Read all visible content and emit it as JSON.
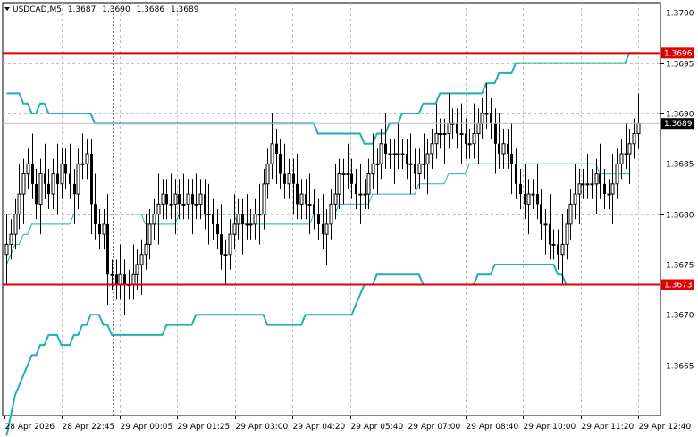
{
  "header": {
    "symbol": "USDCAD,M5",
    "open": "1.3687",
    "high": "1.3690",
    "low": "1.3686",
    "close": "1.3689"
  },
  "colors": {
    "candle": "#000000",
    "bands": "#20b2aa",
    "middle_band": "#20b2aa",
    "grid": "#c0c0c0",
    "level_line": "#e00000",
    "price_tag_bg": "#000000",
    "price_tag_text": "#ffffff"
  },
  "icons": {
    "menu": "triangle-down-icon"
  },
  "chart_data": {
    "type": "candlestick",
    "ylim": [
      1.366,
      1.3701
    ],
    "y_ticks": [
      "1.3700",
      "1.3695",
      "1.3690",
      "1.3685",
      "1.3680",
      "1.3675",
      "1.3670",
      "1.3665"
    ],
    "x_ticks": [
      "28 Apr 2026",
      "28 Apr 22:45",
      "29 Apr 00:05",
      "29 Apr 01:25",
      "29 Apr 03:00",
      "29 Apr 04:20",
      "29 Apr 05:40",
      "29 Apr 07:00",
      "29 Apr 08:40",
      "29 Apr 10:00",
      "29 Apr 11:20",
      "29 Apr 12:40"
    ],
    "grid": true,
    "levels": [
      {
        "value": 1.3696,
        "label": "1.3696"
      },
      {
        "value": 1.3673,
        "label": "1.3673"
      }
    ],
    "current_price": {
      "value": 1.3689,
      "label": "1.3689"
    },
    "candle_closes": [
      1.3677,
      1.3678,
      1.368,
      1.3682,
      1.3684,
      1.3685,
      1.3683,
      1.3681,
      1.3684,
      1.3683,
      1.3682,
      1.3684,
      1.3683,
      1.3685,
      1.3684,
      1.3683,
      1.3682,
      1.3685,
      1.3685,
      1.3686,
      1.3681,
      1.3679,
      1.3678,
      1.3679,
      1.3674,
      1.3674,
      1.3673,
      1.3674,
      1.3673,
      1.3673,
      1.3674,
      1.3675,
      1.3676,
      1.3677,
      1.3679,
      1.368,
      1.3681,
      1.3682,
      1.3681,
      1.3681,
      1.3682,
      1.3681,
      1.3681,
      1.3682,
      1.3681,
      1.3681,
      1.3682,
      1.368,
      1.368,
      1.3679,
      1.3678,
      1.3676,
      1.3676,
      1.3678,
      1.3679,
      1.368,
      1.3679,
      1.3679,
      1.3679,
      1.368,
      1.368,
      1.3683,
      1.3685,
      1.3687,
      1.3686,
      1.3684,
      1.3683,
      1.3684,
      1.3683,
      1.3681,
      1.3682,
      1.3681,
      1.3681,
      1.368,
      1.3679,
      1.3678,
      1.3679,
      1.3681,
      1.3682,
      1.3684,
      1.3684,
      1.3684,
      1.3683,
      1.3682,
      1.3682,
      1.3682,
      1.3684,
      1.3685,
      1.3685,
      1.3687,
      1.3686,
      1.3686,
      1.3686,
      1.3686,
      1.3686,
      1.3685,
      1.3685,
      1.3684,
      1.3685,
      1.3685,
      1.3686,
      1.3687,
      1.3688,
      1.3688,
      1.3688,
      1.3689,
      1.3689,
      1.3688,
      1.3688,
      1.3687,
      1.3687,
      1.3688,
      1.3689,
      1.369,
      1.369,
      1.3689,
      1.3687,
      1.3686,
      1.3687,
      1.3686,
      1.3685,
      1.3683,
      1.3682,
      1.3681,
      1.3682,
      1.3682,
      1.3681,
      1.3679,
      1.3679,
      1.3677,
      1.3677,
      1.3676,
      1.3677,
      1.3679,
      1.3681,
      1.3682,
      1.3683,
      1.3683,
      1.3683,
      1.3683,
      1.3684,
      1.3683,
      1.3682,
      1.3682,
      1.3683,
      1.3685,
      1.3686,
      1.3686,
      1.3687,
      1.3688,
      1.3689
    ],
    "upper_band": [
      1.3692,
      1.3692,
      1.3692,
      1.3692,
      1.3691,
      1.3691,
      1.369,
      1.369,
      1.3691,
      1.3691,
      1.369,
      1.369,
      1.369,
      1.369,
      1.369,
      1.369,
      1.369,
      1.369,
      1.369,
      1.369,
      1.369,
      1.3689,
      1.3689,
      1.3689,
      1.3689,
      1.3689,
      1.3689,
      1.3689,
      1.3689,
      1.3689,
      1.3689,
      1.3689,
      1.3689,
      1.3689,
      1.3689,
      1.3689,
      1.3689,
      1.3689,
      1.3689,
      1.3689,
      1.3689,
      1.3689,
      1.3689,
      1.3689,
      1.3689,
      1.3689,
      1.3689,
      1.3689,
      1.3689,
      1.3689,
      1.3689,
      1.3689,
      1.3689,
      1.3689,
      1.3689,
      1.3689,
      1.3689,
      1.3689,
      1.3689,
      1.3689,
      1.3689,
      1.3689,
      1.3689,
      1.3689,
      1.3689,
      1.3689,
      1.3689,
      1.3689,
      1.3689,
      1.3689,
      1.3689,
      1.3689,
      1.3689,
      1.3689,
      1.3688,
      1.3688,
      1.3688,
      1.3688,
      1.3688,
      1.3688,
      1.3688,
      1.3688,
      1.3688,
      1.3688,
      1.3688,
      1.3687,
      1.3687,
      1.3687,
      1.3688,
      1.3688,
      1.3688,
      1.3689,
      1.3689,
      1.3689,
      1.369,
      1.369,
      1.369,
      1.369,
      1.369,
      1.3691,
      1.3691,
      1.3691,
      1.3691,
      1.3692,
      1.3692,
      1.3692,
      1.3692,
      1.3692,
      1.3692,
      1.3692,
      1.3692,
      1.3692,
      1.3692,
      1.3692,
      1.3693,
      1.3693,
      1.3693,
      1.3694,
      1.3694,
      1.3694,
      1.3694,
      1.3695,
      1.3695,
      1.3695,
      1.3695,
      1.3695,
      1.3695,
      1.3695,
      1.3695,
      1.3695,
      1.3695,
      1.3695,
      1.3695,
      1.3695,
      1.3695,
      1.3695,
      1.3695,
      1.3695,
      1.3695,
      1.3695,
      1.3695,
      1.3695,
      1.3695,
      1.3695,
      1.3695,
      1.3695,
      1.3695,
      1.3695,
      1.3696,
      1.3696,
      1.3696
    ],
    "middle_band": [
      1.3675,
      1.3676,
      1.3677,
      1.3677,
      1.3678,
      1.3678,
      1.3679,
      1.3679,
      1.3679,
      1.3679,
      1.3679,
      1.3679,
      1.3679,
      1.3679,
      1.3679,
      1.3679,
      1.368,
      1.368,
      1.368,
      1.368,
      1.368,
      1.368,
      1.368,
      1.368,
      1.368,
      1.368,
      1.368,
      1.368,
      1.368,
      1.368,
      1.368,
      1.368,
      1.368,
      1.3679,
      1.3679,
      1.3679,
      1.3679,
      1.3679,
      1.3679,
      1.3679,
      1.3679,
      1.368,
      1.368,
      1.368,
      1.368,
      1.368,
      1.368,
      1.368,
      1.368,
      1.368,
      1.368,
      1.368,
      1.368,
      1.368,
      1.368,
      1.3679,
      1.3679,
      1.3679,
      1.3679,
      1.3679,
      1.3679,
      1.3679,
      1.3679,
      1.3679,
      1.3679,
      1.3679,
      1.3679,
      1.3679,
      1.3679,
      1.3679,
      1.3679,
      1.3679,
      1.3679,
      1.368,
      1.368,
      1.368,
      1.368,
      1.368,
      1.368,
      1.3681,
      1.3681,
      1.3681,
      1.3681,
      1.3681,
      1.3681,
      1.3681,
      1.3681,
      1.3682,
      1.3682,
      1.3682,
      1.3682,
      1.3682,
      1.3682,
      1.3682,
      1.3682,
      1.3682,
      1.3682,
      1.3682,
      1.3683,
      1.3683,
      1.3683,
      1.3683,
      1.3683,
      1.3683,
      1.3683,
      1.3684,
      1.3684,
      1.3684,
      1.3684,
      1.3684,
      1.3685,
      1.3685,
      1.3685,
      1.3685,
      1.3685,
      1.3685,
      1.3685,
      1.3685,
      1.3685,
      1.3685,
      1.3685,
      1.3685,
      1.3685,
      1.3685,
      1.3685,
      1.3685,
      1.3685,
      1.3685,
      1.3685,
      1.3685,
      1.3685,
      1.3685,
      1.3685,
      1.3685,
      1.3685,
      1.3685,
      1.3685,
      1.3685,
      1.3685,
      1.3685,
      1.3685,
      1.3684,
      1.3684,
      1.3684,
      1.3684,
      1.3684,
      1.3684,
      1.3684,
      1.3684
    ],
    "lower_band": [
      1.3658,
      1.366,
      1.3662,
      1.3663,
      1.3664,
      1.3665,
      1.3666,
      1.3666,
      1.3667,
      1.3667,
      1.3668,
      1.3668,
      1.3668,
      1.3667,
      1.3667,
      1.3667,
      1.3668,
      1.3668,
      1.3669,
      1.3669,
      1.367,
      1.367,
      1.367,
      1.3669,
      1.3669,
      1.3668,
      1.3668,
      1.3668,
      1.3668,
      1.3668,
      1.3668,
      1.3668,
      1.3668,
      1.3668,
      1.3668,
      1.3668,
      1.3668,
      1.3668,
      1.3669,
      1.3669,
      1.3669,
      1.3669,
      1.3669,
      1.3669,
      1.3669,
      1.367,
      1.367,
      1.367,
      1.367,
      1.367,
      1.367,
      1.367,
      1.367,
      1.367,
      1.367,
      1.367,
      1.367,
      1.367,
      1.367,
      1.367,
      1.367,
      1.367,
      1.3669,
      1.3669,
      1.3669,
      1.3669,
      1.3669,
      1.3669,
      1.3669,
      1.3669,
      1.3669,
      1.367,
      1.367,
      1.367,
      1.367,
      1.367,
      1.367,
      1.367,
      1.367,
      1.367,
      1.367,
      1.367,
      1.367,
      1.3671,
      1.3672,
      1.3673,
      1.3673,
      1.3673,
      1.3674,
      1.3674,
      1.3674,
      1.3674,
      1.3674,
      1.3674,
      1.3674,
      1.3674,
      1.3674,
      1.3674,
      1.3674,
      1.3673,
      1.3673,
      1.3673,
      1.3673,
      1.3673,
      1.3673,
      1.3673,
      1.3673,
      1.3673,
      1.3673,
      1.3673,
      1.3673,
      1.3673,
      1.3674,
      1.3674,
      1.3674,
      1.3674,
      1.3675,
      1.3675,
      1.3675,
      1.3675,
      1.3675,
      1.3675,
      1.3675,
      1.3675,
      1.3675,
      1.3675,
      1.3675,
      1.3675,
      1.3675,
      1.3675,
      1.3675,
      1.3674,
      1.3674,
      1.3673,
      1.3673,
      1.3673,
      1.3673,
      1.3673,
      1.3673,
      1.3673,
      1.3673,
      1.3673,
      1.3673,
      1.3673,
      1.3673,
      1.3673,
      1.3673,
      1.3673,
      1.3673,
      1.3673,
      1.3673
    ]
  }
}
